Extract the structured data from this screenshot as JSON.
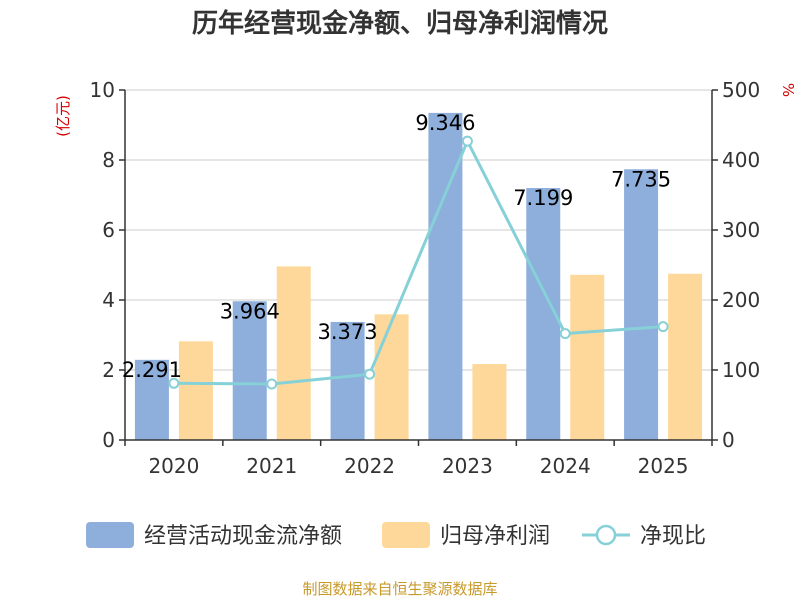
{
  "chart_data": {
    "type": "bar",
    "title": "历年经营现金净额、归母净利润情况",
    "categories": [
      "2020",
      "2021",
      "2022",
      "2023",
      "2024",
      "2025"
    ],
    "series": [
      {
        "name": "经营活动现金流净额",
        "axis": "left",
        "kind": "bar",
        "color": "#8eaedc",
        "values": [
          2.291,
          3.964,
          3.373,
          9.346,
          7.199,
          7.735
        ],
        "labels": [
          "2.291",
          "3.964",
          "3.373",
          "9.346",
          "7.199",
          "7.735"
        ]
      },
      {
        "name": "归母净利润",
        "axis": "left",
        "kind": "bar",
        "color": "#fdd89a",
        "values": [
          2.82,
          4.96,
          3.59,
          2.17,
          4.72,
          4.75
        ]
      },
      {
        "name": "净现比",
        "axis": "right",
        "kind": "line",
        "color": "#86d0d8",
        "values": [
          81,
          80,
          94,
          427,
          152,
          162
        ]
      }
    ],
    "y_left": {
      "unit": "(亿元)",
      "min": 0,
      "max": 10,
      "ticks": [
        "0",
        "2",
        "4",
        "6",
        "8",
        "10"
      ]
    },
    "y_right": {
      "unit": "%",
      "min": 0,
      "max": 500,
      "ticks": [
        "0",
        "100",
        "200",
        "300",
        "400",
        "500"
      ]
    },
    "grid": true,
    "legend_position": "bottom",
    "source": "制图数据来自恒生聚源数据库"
  }
}
